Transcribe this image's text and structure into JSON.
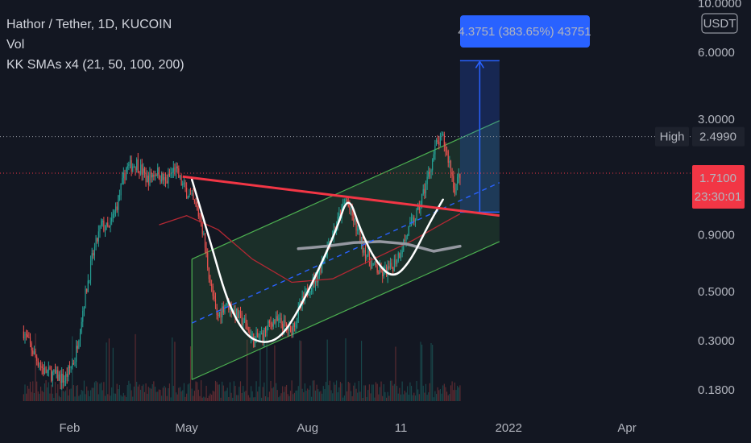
{
  "legend": {
    "symbol_line": "Hathor / Tether, 1D, KUCOIN",
    "volume_label": "Vol",
    "indicator_line": "KK SMAs x4 (21, 50, 100, 200)"
  },
  "chart_data": {
    "type": "candlestick",
    "symbol": "Hathor / Tether",
    "interval": "1D",
    "exchange": "KUCOIN",
    "quote_currency": "USDT",
    "y_scale": "log",
    "ylim": [
      0.16,
      10.0
    ],
    "price_ticks": [
      10.0,
      6.0,
      3.0,
      0.9,
      0.5,
      0.3,
      0.18
    ],
    "price_tick_labels": [
      "10.0000",
      "6.0000",
      "3.0000",
      "0.9000",
      "0.5000",
      "0.3000",
      "0.1800"
    ],
    "x_ticks": [
      "Feb",
      "May",
      "Aug",
      "11",
      "2022",
      "Apr"
    ],
    "x_tick_dates": [
      "2021-02-01",
      "2021-05-01",
      "2021-08-01",
      "2021-10-11",
      "2022-01-01",
      "2022-04-01"
    ],
    "xlim": [
      "2020-12-10",
      "2022-05-20"
    ],
    "last_price": "1.7100",
    "countdown": "23:30:01",
    "high_label": "High",
    "high_value": "2.4990",
    "measure_label": "4.3751 (383.65%) 43751",
    "measure_range": [
      1.14,
      5.5
    ],
    "measure_dates": [
      "2021-11-25",
      "2021-12-25"
    ],
    "channel_lower": [
      [
        "2021-05-05",
        0.2
      ],
      [
        "2021-12-25",
        0.84
      ]
    ],
    "channel_upper": [
      [
        "2021-05-05",
        0.7
      ],
      [
        "2021-12-25",
        2.95
      ]
    ],
    "channel_mid": [
      [
        "2021-05-05",
        0.36
      ],
      [
        "2021-12-25",
        1.55
      ]
    ],
    "neckline": [
      [
        "2021-04-28",
        1.65
      ],
      [
        "2021-12-25",
        1.1
      ]
    ],
    "series": [
      {
        "kind": "price-path",
        "points": [
          [
            "2020-12-28",
            0.33
          ],
          [
            "2021-01-05",
            0.26
          ],
          [
            "2021-01-12",
            0.22
          ],
          [
            "2021-01-20",
            0.21
          ],
          [
            "2021-01-28",
            0.2
          ],
          [
            "2021-02-05",
            0.25
          ],
          [
            "2021-02-12",
            0.45
          ],
          [
            "2021-02-18",
            0.7
          ],
          [
            "2021-02-25",
            1.0
          ],
          [
            "2021-03-03",
            0.95
          ],
          [
            "2021-03-10",
            1.3
          ],
          [
            "2021-03-16",
            1.8
          ],
          [
            "2021-03-24",
            1.9
          ],
          [
            "2021-04-01",
            1.6
          ],
          [
            "2021-04-08",
            1.75
          ],
          [
            "2021-04-15",
            1.55
          ],
          [
            "2021-04-22",
            1.8
          ],
          [
            "2021-04-28",
            1.5
          ],
          [
            "2021-05-05",
            1.3
          ],
          [
            "2021-05-12",
            1.05
          ],
          [
            "2021-05-19",
            0.55
          ],
          [
            "2021-05-24",
            0.38
          ],
          [
            "2021-05-31",
            0.45
          ],
          [
            "2021-06-07",
            0.4
          ],
          [
            "2021-06-14",
            0.36
          ],
          [
            "2021-06-21",
            0.3
          ],
          [
            "2021-06-28",
            0.32
          ],
          [
            "2021-07-05",
            0.37
          ],
          [
            "2021-07-12",
            0.36
          ],
          [
            "2021-07-19",
            0.33
          ],
          [
            "2021-07-26",
            0.42
          ],
          [
            "2021-08-02",
            0.52
          ],
          [
            "2021-08-09",
            0.6
          ],
          [
            "2021-08-16",
            0.8
          ],
          [
            "2021-08-23",
            1.0
          ],
          [
            "2021-08-30",
            1.3
          ],
          [
            "2021-09-05",
            1.05
          ],
          [
            "2021-09-12",
            0.8
          ],
          [
            "2021-09-19",
            0.66
          ],
          [
            "2021-09-26",
            0.6
          ],
          [
            "2021-10-03",
            0.63
          ],
          [
            "2021-10-10",
            0.75
          ],
          [
            "2021-10-17",
            0.95
          ],
          [
            "2021-10-24",
            1.15
          ],
          [
            "2021-10-31",
            1.6
          ],
          [
            "2021-11-07",
            2.3
          ],
          [
            "2021-11-12",
            2.45
          ],
          [
            "2021-11-17",
            1.9
          ],
          [
            "2021-11-21",
            1.45
          ],
          [
            "2021-11-25",
            1.71
          ]
        ]
      },
      {
        "kind": "moving-average",
        "color": "#b22833",
        "points": [
          [
            "2021-04-10",
            1.0
          ],
          [
            "2021-05-01",
            1.1
          ],
          [
            "2021-05-25",
            0.95
          ],
          [
            "2021-06-20",
            0.7
          ],
          [
            "2021-07-20",
            0.55
          ],
          [
            "2021-08-20",
            0.57
          ],
          [
            "2021-09-20",
            0.7
          ],
          [
            "2021-10-20",
            0.85
          ],
          [
            "2021-11-10",
            1.0
          ],
          [
            "2021-11-25",
            1.12
          ]
        ]
      },
      {
        "kind": "moving-average",
        "color": "#9598a1",
        "points": [
          [
            "2021-07-25",
            0.78
          ],
          [
            "2021-08-15",
            0.8
          ],
          [
            "2021-09-05",
            0.83
          ],
          [
            "2021-09-25",
            0.84
          ],
          [
            "2021-10-15",
            0.82
          ],
          [
            "2021-11-05",
            0.76
          ],
          [
            "2021-11-25",
            0.8
          ]
        ]
      },
      {
        "kind": "cup-and-handle-sketch",
        "color": "#ffffff",
        "points": [
          [
            "2021-05-05",
            1.6
          ],
          [
            "2021-05-20",
            0.8
          ],
          [
            "2021-06-01",
            0.45
          ],
          [
            "2021-06-14",
            0.32
          ],
          [
            "2021-06-28",
            0.29
          ],
          [
            "2021-07-12",
            0.31
          ],
          [
            "2021-07-26",
            0.42
          ],
          [
            "2021-08-09",
            0.62
          ],
          [
            "2021-08-23",
            0.95
          ],
          [
            "2021-09-01",
            1.38
          ],
          [
            "2021-09-10",
            0.95
          ],
          [
            "2021-09-22",
            0.68
          ],
          [
            "2021-10-05",
            0.57
          ],
          [
            "2021-10-18",
            0.68
          ],
          [
            "2021-11-01",
            1.0
          ],
          [
            "2021-11-12",
            1.3
          ]
        ]
      }
    ]
  },
  "colors": {
    "background": "#131722",
    "up": "#26a69a",
    "down": "#ef5350",
    "channel": "#4caf50",
    "neckline": "#f23645",
    "mid_line": "#2962ff",
    "measure": "#2962ff",
    "high_badge": "#1e222d",
    "last_price_badge": "#f23645"
  }
}
